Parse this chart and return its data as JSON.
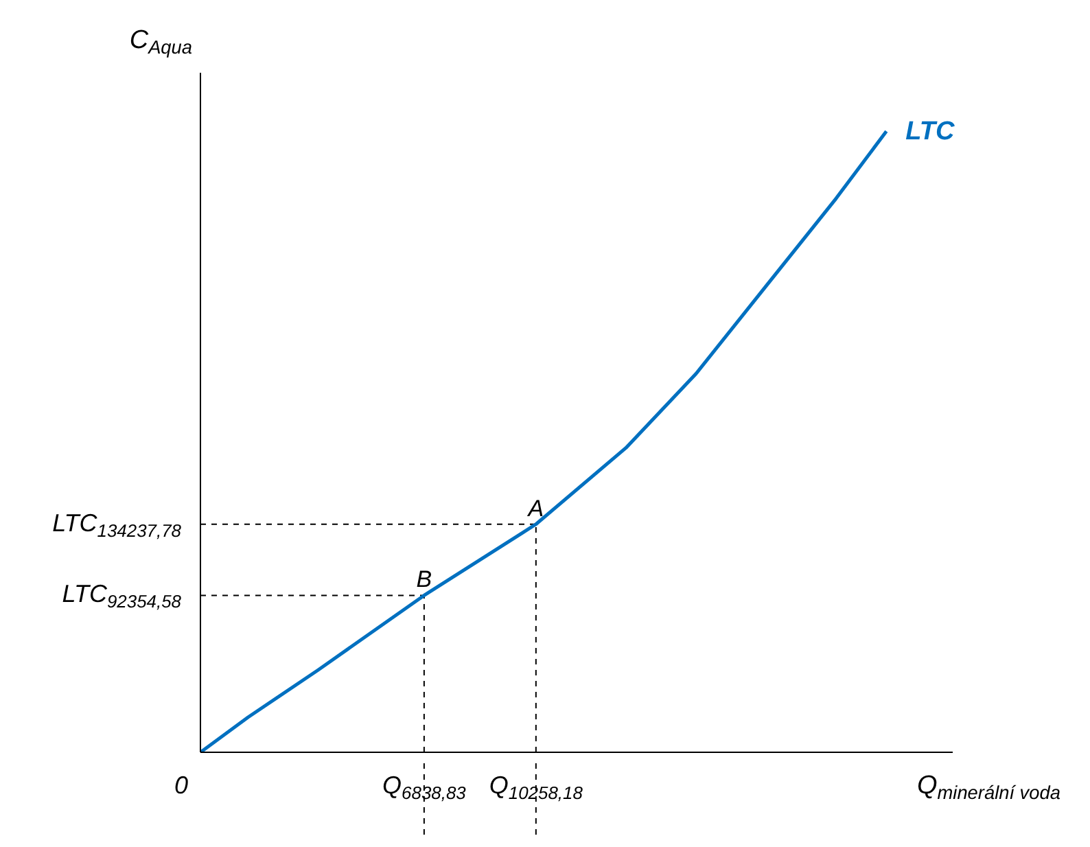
{
  "chart_data": {
    "type": "line",
    "xlabel": "Q$_{minerální voda}$",
    "ylabel": "C$_{Aqua}$",
    "x": [
      0,
      1455,
      3595,
      6838.83,
      10258.18,
      13011,
      15151,
      17291,
      19431,
      20972
    ],
    "series": [
      {
        "name": "LTC",
        "color": "#0070c0",
        "values": [
          0,
          20618,
          48373,
          92354.58,
          134237.78,
          179218,
          222833,
          274378,
          325923,
          365573
        ]
      }
    ],
    "xlim": [
      0,
      23000
    ],
    "ylim": [
      0,
      400000
    ],
    "xticks": [
      {
        "value": 0,
        "label": "0"
      },
      {
        "value": 6838.83,
        "label": "Q$_{6838,83}$"
      },
      {
        "value": 10258.18,
        "label": "Q$_{10258,18}$"
      }
    ],
    "yticks": [
      {
        "value": 92354.58,
        "label": "LTC$_{92354,58}$"
      },
      {
        "value": 134237.78,
        "label": "LTC$_{134237,78}$"
      }
    ],
    "annotations": [
      {
        "text": "B",
        "x": 6838.83,
        "y": 92354.58
      },
      {
        "text": "A",
        "x": 10258.18,
        "y": 134237.78
      }
    ],
    "grid": false,
    "legend": false,
    "marker": "none",
    "line_style": "solid"
  }
}
